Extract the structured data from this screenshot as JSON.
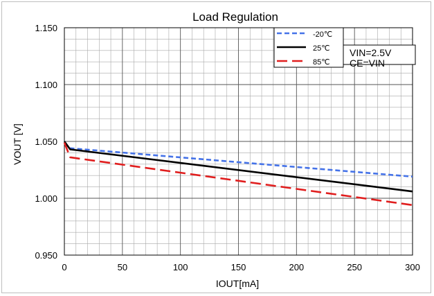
{
  "chart_data": {
    "type": "line",
    "title": "Load Regulation",
    "xlabel": "IOUT[mA]",
    "ylabel": "VOUT [V]",
    "xlim": [
      0,
      300
    ],
    "ylim": [
      0.95,
      1.15
    ],
    "x_ticks": [
      "0",
      "50",
      "100",
      "150",
      "200",
      "250",
      "300"
    ],
    "y_ticks": [
      "0.950",
      "1.000",
      "1.050",
      "1.100",
      "1.150"
    ],
    "grid": true,
    "legend_position": "top-right",
    "conditions": [
      "VIN=2.5V",
      "CE=VIN"
    ],
    "series": [
      {
        "name": "-20℃",
        "color": "#4472e8",
        "dash": "dashed",
        "x": [
          0,
          5,
          300
        ],
        "y": [
          1.049,
          1.044,
          1.019
        ]
      },
      {
        "name": "25℃",
        "color": "#000000",
        "dash": "solid",
        "x": [
          0,
          5,
          300
        ],
        "y": [
          1.05,
          1.043,
          1.006
        ]
      },
      {
        "name": "85℃",
        "color": "#e01e1e",
        "dash": "longdash",
        "x": [
          0,
          5,
          300
        ],
        "y": [
          1.049,
          1.036,
          0.994
        ]
      }
    ]
  }
}
